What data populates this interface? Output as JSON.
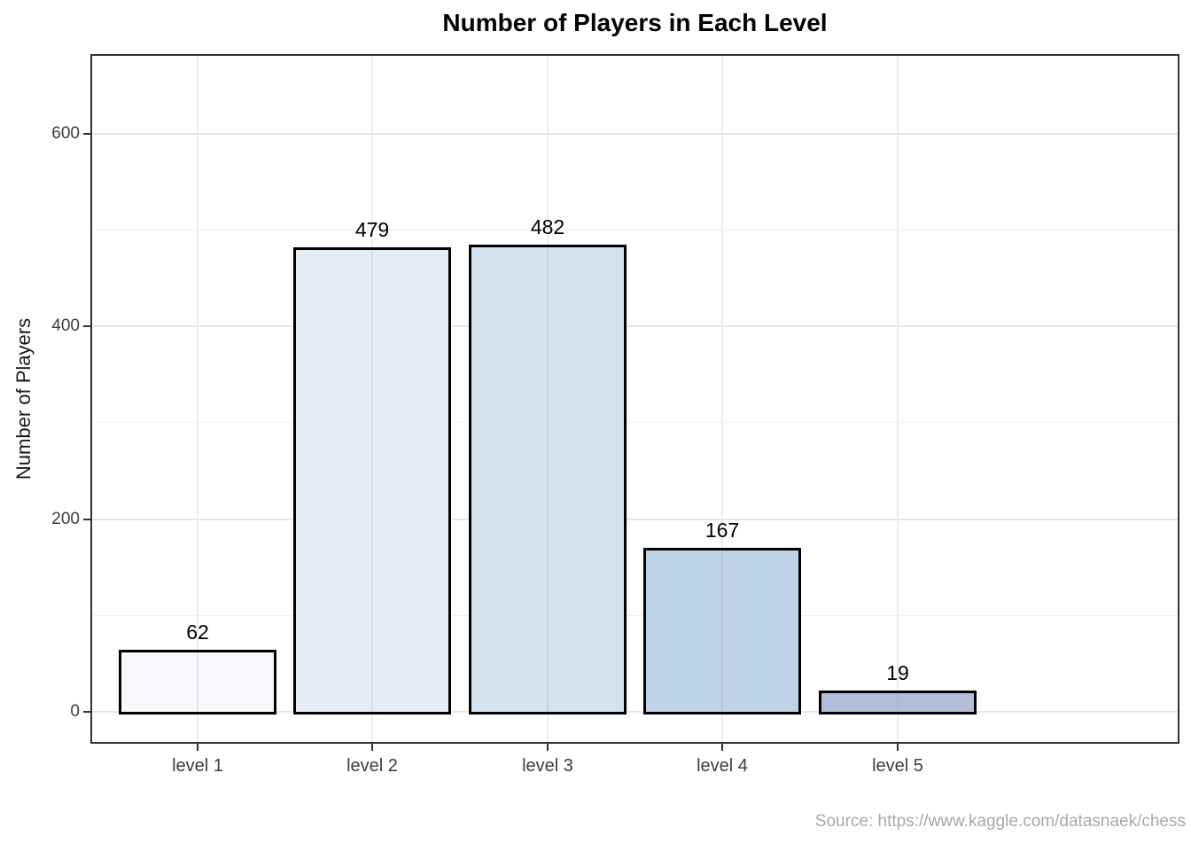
{
  "chart_data": {
    "type": "bar",
    "title": "Number of Players in Each Level",
    "categories": [
      "level 1",
      "level 2",
      "level 3",
      "level 4",
      "level 5"
    ],
    "values": [
      62,
      479,
      482,
      167,
      19
    ],
    "bar_labels": [
      "62",
      "479",
      "482",
      "167",
      "19"
    ],
    "xlabel": "",
    "ylabel": "Number of Players",
    "y_major_ticks": [
      0,
      200,
      400,
      600
    ],
    "y_minor_ticks": [
      100,
      300,
      500
    ],
    "ylim": [
      -32,
      683
    ],
    "grid": true,
    "legend": false,
    "bar_width_fraction": 0.9,
    "bar_colors": [
      "#F7F8FC",
      "#E5ECF5",
      "#D4E2F0",
      "#BED3E8",
      "#B3BFDA"
    ],
    "bar_border_color": "#000000",
    "panel_border_color": "#333333",
    "grid_color": "#e6e6e6",
    "tick_label_color": "#3d3d3d",
    "caption": "Source: https://www.kaggle.com/datasnaek/chess"
  }
}
